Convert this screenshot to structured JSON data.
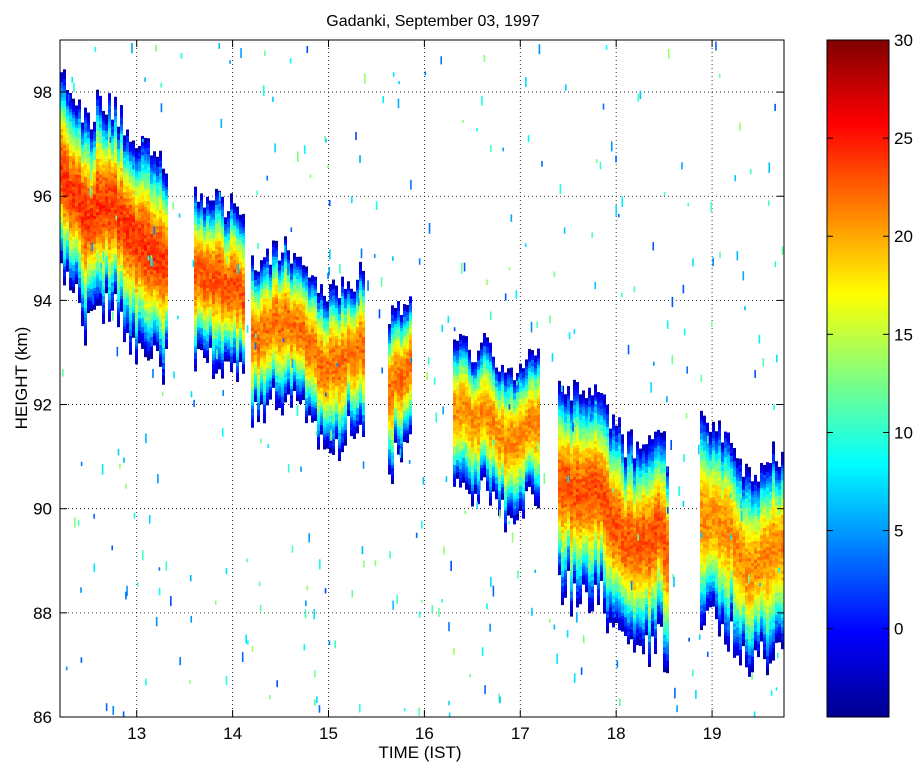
{
  "chart_data": {
    "type": "heatmap",
    "title": "Gadanki, September 03, 1997",
    "xlabel": "TIME (IST)",
    "ylabel": "HEIGHT (km)",
    "xlim": [
      12.2,
      19.75
    ],
    "ylim": [
      86,
      99
    ],
    "x_ticks": [
      13,
      14,
      15,
      16,
      17,
      18,
      19
    ],
    "y_ticks": [
      86,
      88,
      90,
      92,
      94,
      96,
      98
    ],
    "grid": true,
    "colormap": "jet",
    "colorbar": {
      "range": [
        -4.5,
        30
      ],
      "ticks": [
        0,
        5,
        10,
        15,
        20,
        25,
        30
      ]
    },
    "layer_segments": [
      {
        "t0": 12.2,
        "t1": 13.32,
        "center_start": 96.4,
        "center_end": 94.7,
        "half_width": 1.9,
        "peak": 24
      },
      {
        "t0": 13.6,
        "t1": 14.12,
        "center_start": 94.6,
        "center_end": 93.9,
        "half_width": 1.5,
        "peak": 23
      },
      {
        "t0": 14.2,
        "t1": 15.36,
        "center_start": 93.6,
        "center_end": 92.8,
        "half_width": 1.4,
        "peak": 22
      },
      {
        "t0": 15.63,
        "t1": 15.84,
        "center_start": 92.4,
        "center_end": 92.6,
        "half_width": 1.4,
        "peak": 22
      },
      {
        "t0": 16.3,
        "t1": 17.2,
        "center_start": 91.8,
        "center_end": 91.2,
        "half_width": 1.3,
        "peak": 21
      },
      {
        "t0": 17.4,
        "t1": 18.52,
        "center_start": 90.7,
        "center_end": 89.1,
        "half_width": 1.9,
        "peak": 23
      },
      {
        "t0": 18.88,
        "t1": 19.75,
        "center_start": 89.7,
        "center_end": 88.7,
        "half_width": 1.8,
        "peak": 21
      }
    ]
  },
  "icons": {
    "colorbar": "jet-colormap-gradient"
  }
}
